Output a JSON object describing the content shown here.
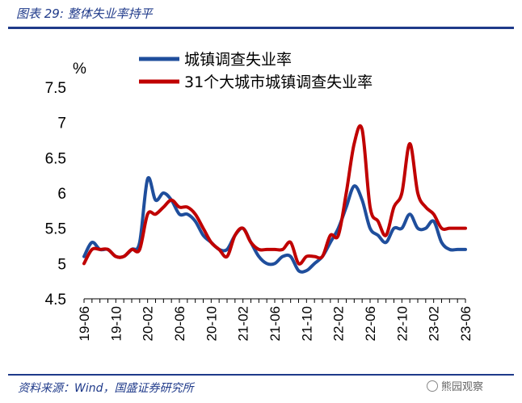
{
  "figure_title": "图表 29:  整体失业率持平",
  "source": "资料来源：Wind，国盛证券研究所",
  "watermark": "熊园观察",
  "colors": {
    "blue": "#1f4e9c",
    "red": "#c00000",
    "frame": "#1f3a8a"
  },
  "chart_data": {
    "type": "line",
    "ylabel": "%",
    "ylim": [
      4.5,
      7.5
    ],
    "yticks": [
      4.5,
      5,
      5.5,
      6,
      6.5,
      7,
      7.5
    ],
    "ytick_labels": [
      "4.5",
      "5",
      "5.5",
      "6",
      "6.5",
      "7",
      "7.5"
    ],
    "xtick_labels": [
      "19-06",
      "19-10",
      "20-02",
      "20-06",
      "20-10",
      "21-02",
      "21-06",
      "21-10",
      "22-02",
      "22-06",
      "22-10",
      "23-02",
      "23-06"
    ],
    "x": [
      "19-06",
      "19-07",
      "19-08",
      "19-09",
      "19-10",
      "19-11",
      "19-12",
      "20-01",
      "20-02",
      "20-03",
      "20-04",
      "20-05",
      "20-06",
      "20-07",
      "20-08",
      "20-09",
      "20-10",
      "20-11",
      "20-12",
      "21-01",
      "21-02",
      "21-03",
      "21-04",
      "21-05",
      "21-06",
      "21-07",
      "21-08",
      "21-09",
      "21-10",
      "21-11",
      "21-12",
      "22-01",
      "22-02",
      "22-03",
      "22-04",
      "22-05",
      "22-06",
      "22-07",
      "22-08",
      "22-09",
      "22-10",
      "22-11",
      "22-12",
      "23-01",
      "23-02",
      "23-03",
      "23-04",
      "23-05",
      "23-06"
    ],
    "legend_position": "top",
    "series": [
      {
        "name": "城镇调查失业率",
        "color": "#1f4e9c",
        "values": [
          5.1,
          5.3,
          5.2,
          5.2,
          5.1,
          5.1,
          5.2,
          5.3,
          6.2,
          5.9,
          6.0,
          5.9,
          5.7,
          5.7,
          5.6,
          5.4,
          5.3,
          5.2,
          5.2,
          5.4,
          5.5,
          5.3,
          5.1,
          5.0,
          5.0,
          5.1,
          5.1,
          4.9,
          4.9,
          5.0,
          5.1,
          5.3,
          5.5,
          5.8,
          6.1,
          5.9,
          5.5,
          5.4,
          5.3,
          5.5,
          5.5,
          5.7,
          5.5,
          5.5,
          5.6,
          5.3,
          5.2,
          5.2,
          5.2
        ]
      },
      {
        "name": "31个大城市城镇调查失业率",
        "color": "#c00000",
        "values": [
          5.0,
          5.2,
          5.2,
          5.2,
          5.1,
          5.1,
          5.2,
          5.2,
          5.7,
          5.7,
          5.8,
          5.9,
          5.8,
          5.8,
          5.7,
          5.5,
          5.3,
          5.2,
          5.1,
          5.4,
          5.5,
          5.3,
          5.2,
          5.2,
          5.2,
          5.2,
          5.3,
          5.0,
          5.1,
          5.1,
          5.1,
          5.4,
          5.4,
          6.0,
          6.7,
          6.9,
          5.8,
          5.6,
          5.4,
          5.8,
          6.0,
          6.7,
          6.0,
          5.8,
          5.7,
          5.5,
          5.5,
          5.5,
          5.5
        ]
      }
    ]
  }
}
